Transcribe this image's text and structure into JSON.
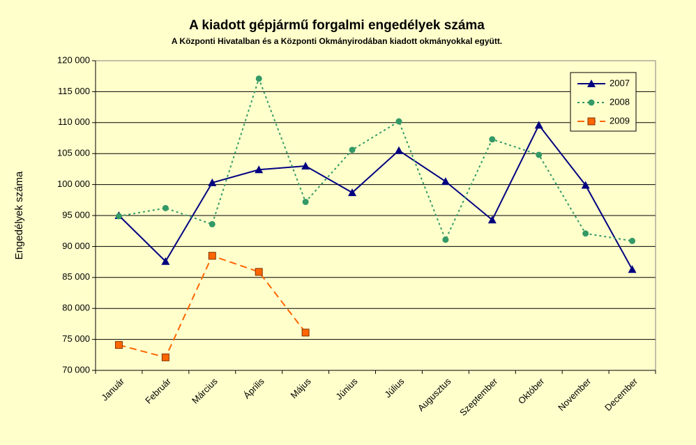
{
  "chart_data": {
    "type": "line",
    "title": "A  kiadott gépjármű forgalmi engedélyek száma",
    "subtitle": "A  Központi Hivatalban és a Központi Okmányirodában kiadott okmányokkal együtt.",
    "y_label": "Engedélyek száma",
    "categories": [
      "Január",
      "Február",
      "Március",
      "Április",
      "Május",
      "Június",
      "Július",
      "Augusztus",
      "Szeptember",
      "Október",
      "November",
      "December"
    ],
    "series": [
      {
        "name": "2007",
        "color": "#000080",
        "dash": "solid",
        "marker": "triangle",
        "values": [
          95000,
          87600,
          100300,
          102400,
          103000,
          98700,
          105500,
          100500,
          94300,
          109600,
          99900,
          86300
        ]
      },
      {
        "name": "2008",
        "color": "#339966",
        "dash": "dotted",
        "marker": "circle",
        "values": [
          94900,
          96200,
          93600,
          117100,
          97200,
          105600,
          110200,
          91100,
          107300,
          104800,
          92100,
          90900
        ]
      },
      {
        "name": "2009",
        "color": "#ff6600",
        "dash": "dashed",
        "marker": "square",
        "values": [
          74100,
          72100,
          88500,
          85900,
          76100,
          null,
          null,
          null,
          null,
          null,
          null,
          null
        ]
      }
    ],
    "ylim": [
      70000,
      120000
    ],
    "yticks": [
      {
        "value": 70000,
        "label": "70 000"
      },
      {
        "value": 75000,
        "label": "75 000"
      },
      {
        "value": 80000,
        "label": "80 000"
      },
      {
        "value": 85000,
        "label": "85 000"
      },
      {
        "value": 90000,
        "label": "90 000"
      },
      {
        "value": 95000,
        "label": "95 000"
      },
      {
        "value": 100000,
        "label": "100 000"
      },
      {
        "value": 105000,
        "label": "105 000"
      },
      {
        "value": 110000,
        "label": "110 000"
      },
      {
        "value": 115000,
        "label": "115 000"
      },
      {
        "value": 120000,
        "label": "120 000"
      }
    ],
    "grid": true,
    "legend": "top-right"
  }
}
